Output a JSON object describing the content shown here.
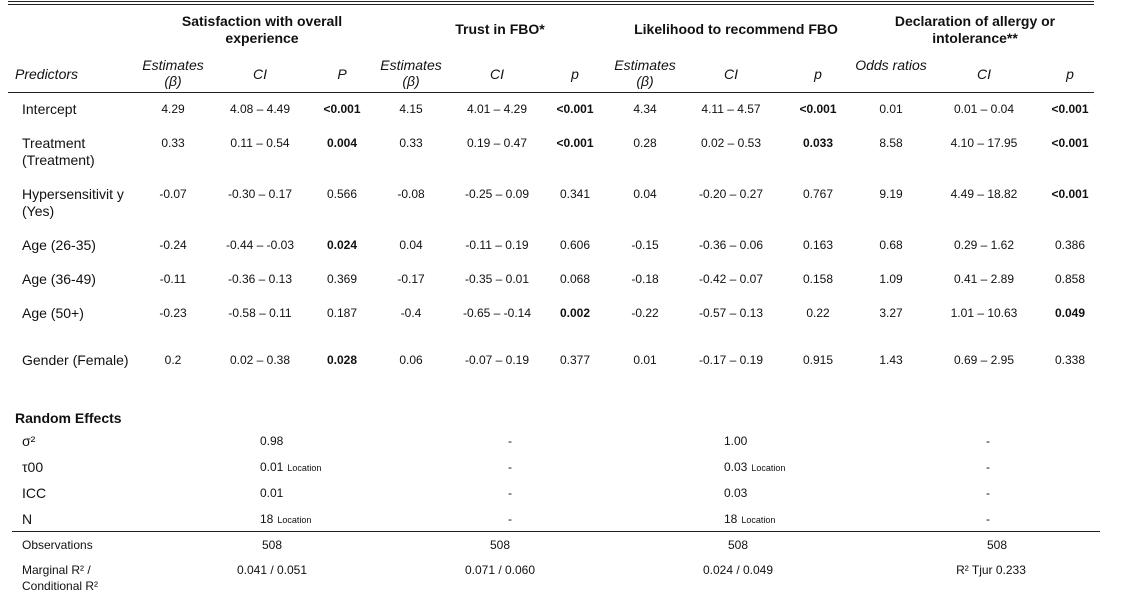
{
  "groups": [
    "Satisfaction with overall experience",
    "Trust in FBO*",
    "Likelihood to recommend FBO",
    "Declaration of allergy or intolerance**"
  ],
  "subheaders": {
    "predictors": "Predictors",
    "g1": [
      "Estimates (β)",
      "CI",
      "P"
    ],
    "g2": [
      "Estimates (β)",
      "CI",
      "p"
    ],
    "g3": [
      "Estimates (β)",
      "CI",
      "p"
    ],
    "g4": [
      "Odds ratios",
      "CI",
      "p"
    ]
  },
  "rows": [
    {
      "label": "Intercept",
      "cells": [
        "4.29",
        "4.08 – 4.49",
        "<0.001",
        "4.15",
        "4.01 – 4.29",
        "<0.001",
        "4.34",
        "4.11 – 4.57",
        "<0.001",
        "0.01",
        "0.01 – 0.04",
        "<0.001"
      ]
    },
    {
      "label": "Treatment (Treatment)",
      "cells": [
        "0.33",
        "0.11 – 0.54",
        "0.004",
        "0.33",
        "0.19 – 0.47",
        "<0.001",
        "0.28",
        "0.02 – 0.53",
        "0.033",
        "8.58",
        "4.10 – 17.95",
        "<0.001"
      ]
    },
    {
      "label": "Hypersensitivit y (Yes)",
      "cells": [
        "-0.07",
        "-0.30 – 0.17",
        "0.566",
        "-0.08",
        "-0.25 – 0.09",
        "0.341",
        "0.04",
        "-0.20 – 0.27",
        "0.767",
        "9.19",
        "4.49 – 18.82",
        "<0.001"
      ]
    },
    {
      "label": "Age (26-35)",
      "cells": [
        "-0.24",
        "-0.44 – -0.03",
        "0.024",
        "0.04",
        "-0.11 – 0.19",
        "0.606",
        "-0.15",
        "-0.36 – 0.06",
        "0.163",
        "0.68",
        "0.29 – 1.62",
        "0.386"
      ]
    },
    {
      "label": "Age (36-49)",
      "cells": [
        "-0.11",
        "-0.36 – 0.13",
        "0.369",
        "-0.17",
        "-0.35 – 0.01",
        "0.068",
        "-0.18",
        "-0.42 – 0.07",
        "0.158",
        "1.09",
        "0.41 – 2.89",
        "0.858"
      ]
    },
    {
      "label": "Age (50+)",
      "cells": [
        "-0.23",
        "-0.58 – 0.11",
        "0.187",
        "-0.4",
        "-0.65 – -0.14",
        "0.002",
        "-0.22",
        "-0.57 – 0.13",
        "0.22",
        "3.27",
        "1.01 – 10.63",
        "0.049"
      ]
    },
    {
      "label": "Gender (Female)",
      "cells": [
        "0.2",
        "0.02 – 0.38",
        "0.028",
        "0.06",
        "-0.07 – 0.19",
        "0.377",
        "0.01",
        "-0.17 – 0.19",
        "0.915",
        "1.43",
        "0.69 – 2.95",
        "0.338"
      ]
    }
  ],
  "random_effects": {
    "title": "Random Effects",
    "rows": [
      {
        "label": "σ²",
        "vals": [
          "0.98",
          "-",
          "1.00",
          "-"
        ],
        "subs": [
          "",
          "",
          "",
          ""
        ]
      },
      {
        "label": "τ00",
        "vals": [
          "0.01",
          "-",
          "0.03",
          "-"
        ],
        "subs": [
          "Location",
          "",
          "Location",
          ""
        ]
      },
      {
        "label": "ICC",
        "vals": [
          "0.01",
          "-",
          "0.03",
          "-"
        ],
        "subs": [
          "",
          "",
          "",
          ""
        ]
      },
      {
        "label": "N",
        "vals": [
          "18",
          "-",
          "18",
          "-"
        ],
        "subs": [
          "Location",
          "",
          "Location",
          ""
        ]
      }
    ]
  },
  "observations": {
    "label": "Observations",
    "vals": [
      "508",
      "508",
      "508",
      "508"
    ]
  },
  "r2": {
    "label": "Marginal R² / Conditional R²",
    "vals": [
      "0.041 / 0.051",
      "0.071 / 0.060",
      "0.024 / 0.049",
      "R² Tjur 0.233"
    ]
  }
}
